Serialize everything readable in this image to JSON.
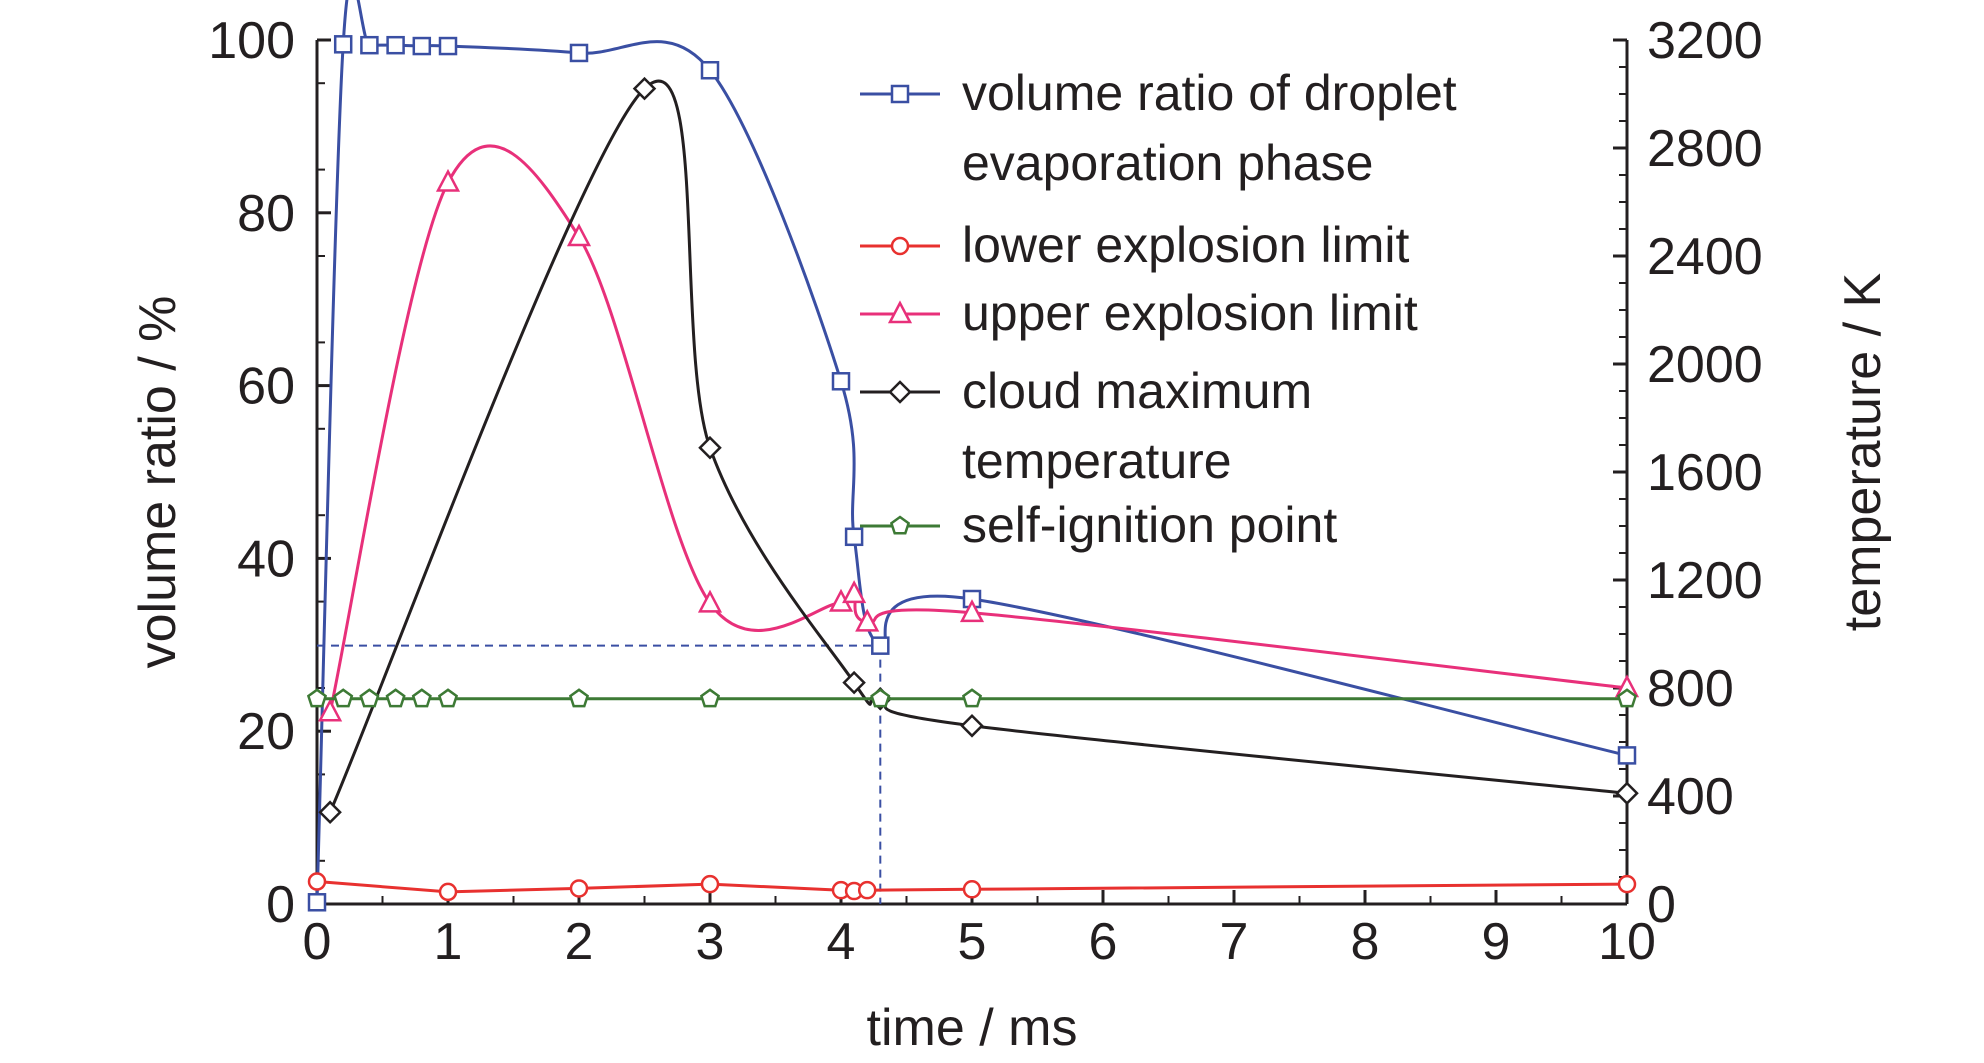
{
  "chart_data": {
    "type": "line",
    "title": "",
    "xlabel": "time / ms",
    "ylabel": "volume ratio / %",
    "y2label": "temperature / K",
    "xlim": [
      0,
      10
    ],
    "ylim": [
      0,
      100
    ],
    "y2lim": [
      0,
      3200
    ],
    "xticks": [
      "0",
      "1",
      "2",
      "3",
      "4",
      "5",
      "6",
      "7",
      "8",
      "9",
      "10"
    ],
    "yticks": [
      "0",
      "20",
      "40",
      "60",
      "80",
      "100"
    ],
    "y2ticks": [
      "0",
      "400",
      "800",
      "1200",
      "1600",
      "2000",
      "2400",
      "2800",
      "3200"
    ],
    "grid": false,
    "legend_position": "top-right",
    "series": [
      {
        "name": "volume ratio of droplet evaporation phase",
        "axis": "left",
        "color": "#3a4fa3",
        "marker": "square",
        "x": [
          0,
          0.2,
          0.4,
          0.6,
          0.8,
          1.0,
          2.0,
          3.0,
          4.0,
          4.1,
          4.3,
          5.0,
          10.0
        ],
        "y": [
          0.2,
          99.5,
          99.4,
          99.4,
          99.3,
          99.3,
          98.5,
          96.5,
          60.5,
          42.5,
          29.9,
          35.3,
          17.2
        ]
      },
      {
        "name": "lower explosion limit",
        "axis": "left",
        "color": "#e8312f",
        "marker": "circle",
        "x": [
          0,
          1.0,
          2.0,
          3.0,
          4.0,
          4.1,
          4.2,
          5.0,
          10.0
        ],
        "y": [
          2.6,
          1.4,
          1.8,
          2.3,
          1.6,
          1.5,
          1.6,
          1.7,
          2.3
        ]
      },
      {
        "name": "upper explosion limit",
        "axis": "left",
        "color": "#e8307a",
        "marker": "triangle",
        "x": [
          0.1,
          1.0,
          2.0,
          3.0,
          4.0,
          4.1,
          4.2,
          5.0,
          10.0
        ],
        "y": [
          22.2,
          83.5,
          77.2,
          34.8,
          34.9,
          35.9,
          32.6,
          33.7,
          25.0
        ]
      },
      {
        "name": "cloud maximum temperature",
        "axis": "right",
        "color": "#231f20",
        "marker": "diamond",
        "x": [
          0.1,
          2.5,
          3.0,
          4.1,
          4.3,
          5.0,
          10.0
        ],
        "y": [
          340,
          3020,
          1690,
          820,
          760,
          660,
          410
        ]
      },
      {
        "name": "self-ignition point",
        "axis": "right",
        "color": "#3d7a35",
        "marker": "pentagon",
        "x": [
          0,
          0.2,
          0.4,
          0.6,
          0.8,
          1.0,
          2.0,
          3.0,
          4.3,
          5.0,
          10.0
        ],
        "y": [
          760,
          760,
          760,
          760,
          760,
          760,
          760,
          760,
          760,
          760,
          760
        ]
      }
    ],
    "legend": [
      {
        "line1": "volume ratio of droplet",
        "line2": "evaporation phase"
      },
      {
        "line1": "lower explosion limit",
        "line2": ""
      },
      {
        "line1": "upper explosion limit",
        "line2": ""
      },
      {
        "line1": "cloud maximum",
        "line2": "temperature"
      },
      {
        "line1": "self-ignition point",
        "line2": ""
      }
    ]
  }
}
